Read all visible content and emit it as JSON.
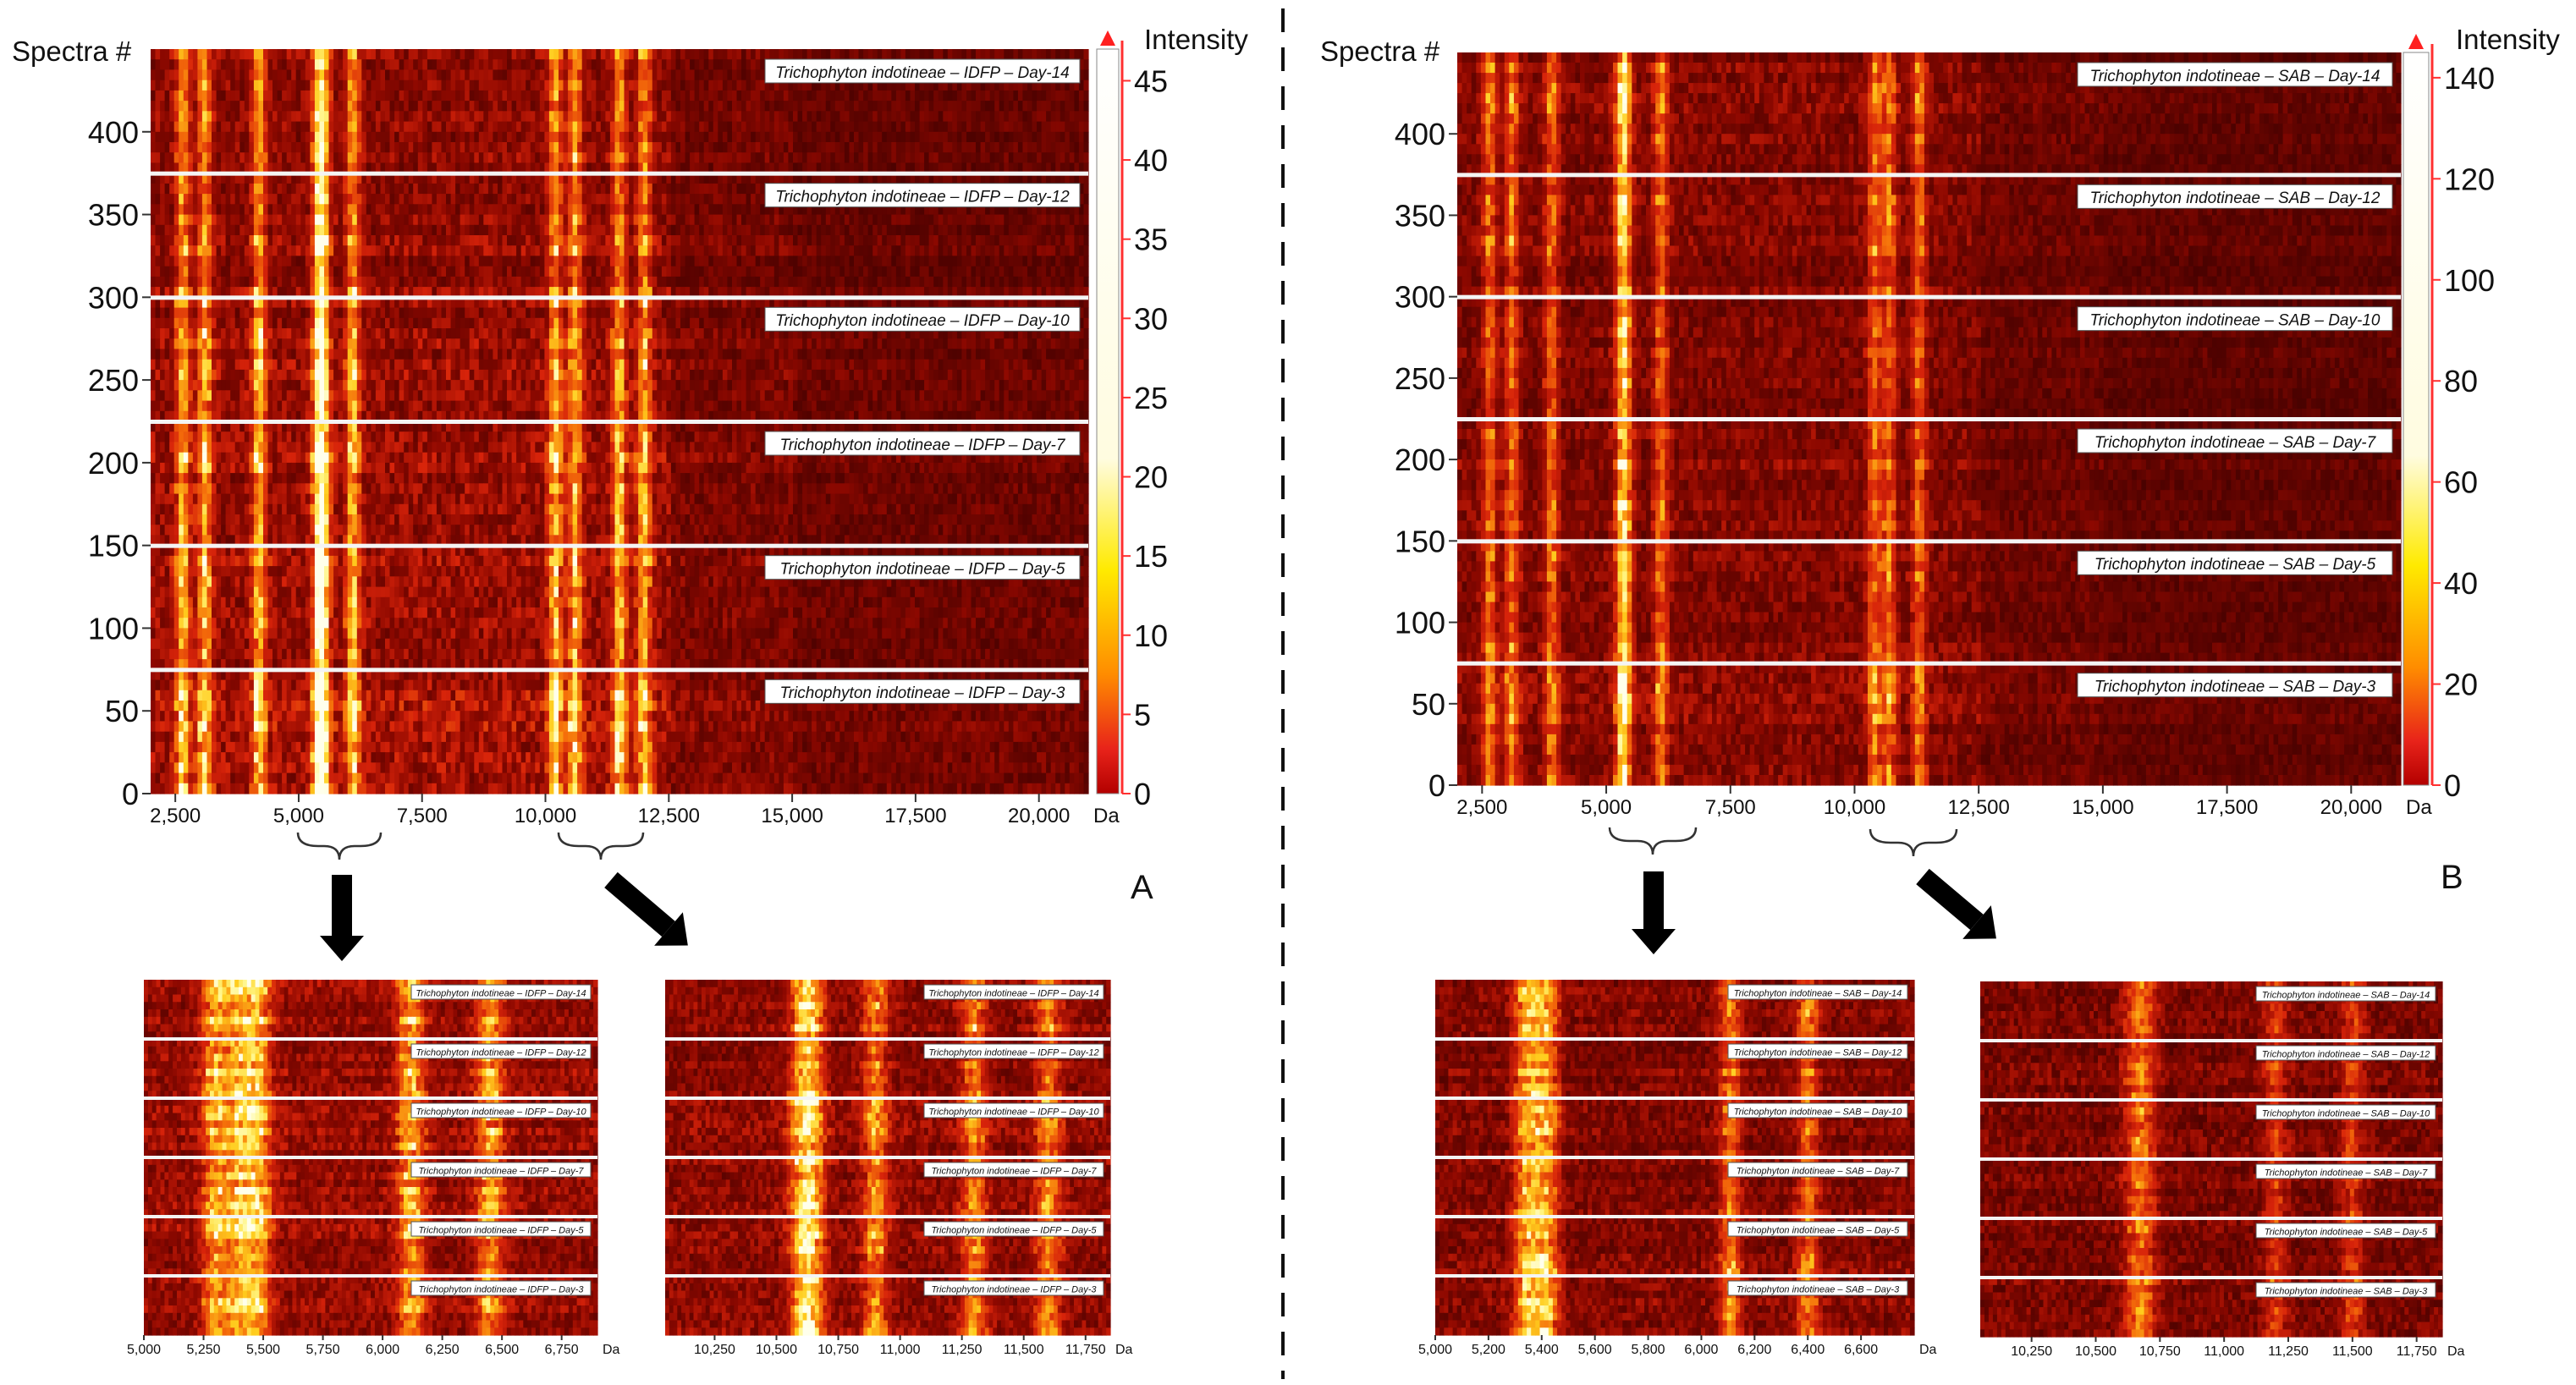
{
  "figure": {
    "panels": [
      "A",
      "B"
    ]
  },
  "chart_data": [
    {
      "id": "main-A",
      "panel": "A",
      "type": "heatmap",
      "ylabel": "Spectra #",
      "yticks": [
        0,
        50,
        100,
        150,
        200,
        250,
        300,
        350,
        400
      ],
      "ylim": [
        0,
        450
      ],
      "xticks": [
        "2,500",
        "5,000",
        "7,500",
        "10,000",
        "12,500",
        "15,000",
        "17,500",
        "20,000"
      ],
      "xtick_values": [
        2500,
        5000,
        7500,
        10000,
        12500,
        15000,
        17500,
        20000
      ],
      "xunit": "Da",
      "xlim": [
        2000,
        21000
      ],
      "colorbar": {
        "label": "Intensity",
        "ticks": [
          "0",
          "5",
          "10",
          "15",
          "20",
          "25",
          "30",
          "35",
          "40",
          "45"
        ],
        "max": 47
      },
      "bands": [
        {
          "label": "Trichophyton indotineae – IDFP – Day-14",
          "y_range": [
            375,
            450
          ]
        },
        {
          "label": "Trichophyton indotineae – IDFP – Day-12",
          "y_range": [
            300,
            375
          ]
        },
        {
          "label": "Trichophyton indotineae – IDFP – Day-10",
          "y_range": [
            225,
            300
          ]
        },
        {
          "label": "Trichophyton indotineae – IDFP – Day-7",
          "y_range": [
            150,
            225
          ]
        },
        {
          "label": "Trichophyton indotineae – IDFP – Day-5",
          "y_range": [
            75,
            150
          ]
        },
        {
          "label": "Trichophyton indotineae – IDFP – Day-3",
          "y_range": [
            0,
            75
          ]
        }
      ],
      "peaks_da": [
        2650,
        3100,
        4200,
        5400,
        5500,
        6100,
        10200,
        10600,
        11500,
        12000
      ],
      "zoom_regions": [
        [
          4800,
          6900
        ],
        [
          10000,
          12000
        ]
      ]
    },
    {
      "id": "main-B",
      "panel": "B",
      "type": "heatmap",
      "ylabel": "Spectra #",
      "yticks": [
        0,
        50,
        100,
        150,
        200,
        250,
        300,
        350,
        400
      ],
      "ylim": [
        0,
        450
      ],
      "xticks": [
        "2,500",
        "5,000",
        "7,500",
        "10,000",
        "12,500",
        "15,000",
        "17,500",
        "20,000"
      ],
      "xtick_values": [
        2500,
        5000,
        7500,
        10000,
        12500,
        15000,
        17500,
        20000
      ],
      "xunit": "Da",
      "xlim": [
        2000,
        21000
      ],
      "colorbar": {
        "label": "Intensity",
        "ticks": [
          "0",
          "20",
          "40",
          "60",
          "80",
          "100",
          "120",
          "140"
        ],
        "max": 145
      },
      "bands": [
        {
          "label": "Trichophyton indotineae – SAB – Day-14",
          "y_range": [
            375,
            450
          ]
        },
        {
          "label": "Trichophyton indotineae – SAB – Day-12",
          "y_range": [
            300,
            375
          ]
        },
        {
          "label": "Trichophyton indotineae – SAB – Day-10",
          "y_range": [
            225,
            300
          ]
        },
        {
          "label": "Trichophyton indotineae – SAB – Day-7",
          "y_range": [
            150,
            225
          ]
        },
        {
          "label": "Trichophyton indotineae – SAB – Day-5",
          "y_range": [
            75,
            150
          ]
        },
        {
          "label": "Trichophyton indotineae – SAB – Day-3",
          "y_range": [
            0,
            75
          ]
        }
      ],
      "peaks_da": [
        2650,
        3100,
        3900,
        5300,
        5400,
        6100,
        10400,
        10700,
        11300
      ],
      "zoom_regions": [
        [
          4800,
          6900
        ],
        [
          10000,
          12000
        ]
      ]
    },
    {
      "id": "zoom-A1",
      "panel": "A",
      "type": "heatmap",
      "xticks": [
        "5,000",
        "5,250",
        "5,500",
        "5,750",
        "6,000",
        "6,250",
        "6,500",
        "6,750"
      ],
      "xtick_values": [
        5000,
        5250,
        5500,
        5750,
        6000,
        6250,
        6500,
        6750
      ],
      "xunit": "Da",
      "xlim": [
        5000,
        6900
      ],
      "bands": [
        "Trichophyton indotineae – IDFP – Day-14",
        "Trichophyton indotineae – IDFP – Day-12",
        "Trichophyton indotineae – IDFP – Day-10",
        "Trichophyton indotineae – IDFP – Day-7",
        "Trichophyton indotineae – IDFP – Day-5",
        "Trichophyton indotineae – IDFP – Day-3"
      ],
      "peaks_da": [
        5300,
        5400,
        5480,
        6120,
        6450
      ]
    },
    {
      "id": "zoom-A2",
      "panel": "A",
      "type": "heatmap",
      "xticks": [
        "10,250",
        "10,500",
        "10,750",
        "11,000",
        "11,250",
        "11,500",
        "11,750"
      ],
      "xtick_values": [
        10250,
        10500,
        10750,
        11000,
        11250,
        11500,
        11750
      ],
      "xunit": "Da",
      "xlim": [
        10050,
        11850
      ],
      "bands": [
        "Trichophyton indotineae – IDFP – Day-14",
        "Trichophyton indotineae – IDFP – Day-12",
        "Trichophyton indotineae – IDFP – Day-10",
        "Trichophyton indotineae – IDFP – Day-7",
        "Trichophyton indotineae – IDFP – Day-5",
        "Trichophyton indotineae – IDFP – Day-3"
      ],
      "peaks_da": [
        10600,
        10650,
        10900,
        11300,
        11600
      ]
    },
    {
      "id": "zoom-B1",
      "panel": "B",
      "type": "heatmap",
      "xticks": [
        "5,000",
        "5,200",
        "5,400",
        "5,600",
        "5,800",
        "6,000",
        "6,200",
        "6,400",
        "6,600"
      ],
      "xtick_values": [
        5000,
        5200,
        5400,
        5600,
        5800,
        6000,
        6200,
        6400,
        6600
      ],
      "xunit": "Da",
      "xlim": [
        5000,
        6800
      ],
      "bands": [
        "Trichophyton indotineae – SAB – Day-14",
        "Trichophyton indotineae – SAB – Day-12",
        "Trichophyton indotineae – SAB – Day-10",
        "Trichophyton indotineae – SAB – Day-7",
        "Trichophyton indotineae – SAB – Day-5",
        "Trichophyton indotineae – SAB – Day-3"
      ],
      "peaks_da": [
        5330,
        5380,
        5430,
        6110,
        6400
      ]
    },
    {
      "id": "zoom-B2",
      "panel": "B",
      "type": "heatmap",
      "xticks": [
        "10,250",
        "10,500",
        "10,750",
        "11,000",
        "11,250",
        "11,500",
        "11,750"
      ],
      "xtick_values": [
        10250,
        10500,
        10750,
        11000,
        11250,
        11500,
        11750
      ],
      "xunit": "Da",
      "xlim": [
        10050,
        11850
      ],
      "bands": [
        "Trichophyton indotineae – SAB – Day-14",
        "Trichophyton indotineae – SAB – Day-12",
        "Trichophyton indotineae – SAB – Day-10",
        "Trichophyton indotineae – SAB – Day-7",
        "Trichophyton indotineae – SAB – Day-5",
        "Trichophyton indotineae – SAB – Day-3"
      ],
      "peaks_da": [
        10650,
        10700,
        11200,
        11500
      ]
    }
  ]
}
